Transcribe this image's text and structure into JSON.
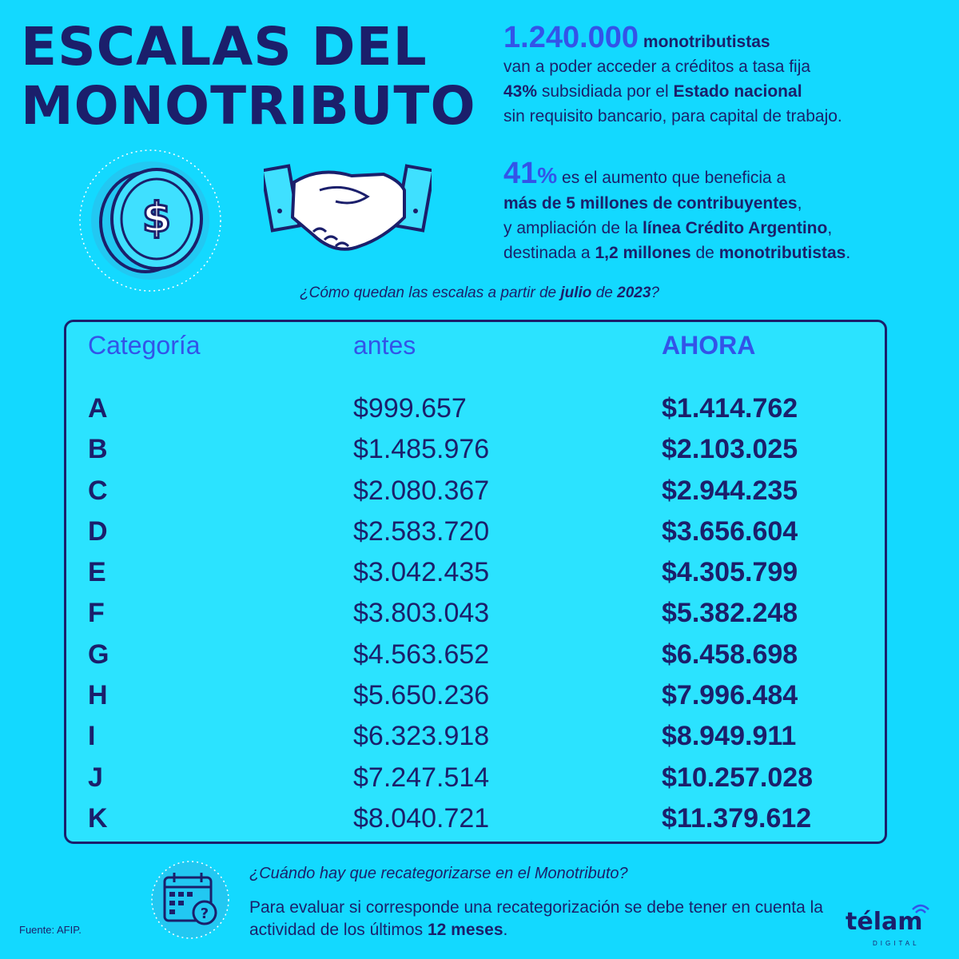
{
  "title": {
    "line1": "ESCALAS DEL",
    "line2": "MONOTRIBUTO"
  },
  "info1": {
    "number": "1.240.000",
    "word": " monotributistas",
    "line2": "van a poder acceder a créditos a tasa fija",
    "pct": "43%",
    "line3_mid": " subsidiada por el ",
    "line3_b": "Estado nacional",
    "line4": "sin requisito bancario, para capital de trabajo."
  },
  "info2": {
    "pct_num": "41",
    "pct_sign": "%",
    "line1": " es el aumento que beneficia a",
    "line2_b": "más de 5 millones de contribuyentes",
    "line2_end": ",",
    "line3_a": "y ampliación de la ",
    "line3_b": "línea Crédito Argentino",
    "line3_end": ",",
    "line4_a": "destinada a ",
    "line4_b": "1,2 millones",
    "line4_c": " de ",
    "line4_d": "monotributistas",
    "line4_end": "."
  },
  "question": {
    "a": "¿Cómo quedan las escalas a partir de ",
    "b": "julio",
    "c": " de ",
    "d": "2023",
    "e": "?"
  },
  "table": {
    "headers": {
      "cat": "Categoría",
      "antes": "antes",
      "ahora": "AHORA"
    },
    "rows": [
      {
        "cat": "A",
        "antes": "$999.657",
        "ahora": "$1.414.762"
      },
      {
        "cat": "B",
        "antes": "$1.485.976",
        "ahora": "$2.103.025"
      },
      {
        "cat": "C",
        "antes": "$2.080.367",
        "ahora": "$2.944.235"
      },
      {
        "cat": "D",
        "antes": "$2.583.720",
        "ahora": "$3.656.604"
      },
      {
        "cat": "E",
        "antes": "$3.042.435",
        "ahora": "$4.305.799"
      },
      {
        "cat": "F",
        "antes": "$3.803.043",
        "ahora": "$5.382.248"
      },
      {
        "cat": "G",
        "antes": "$4.563.652",
        "ahora": "$6.458.698"
      },
      {
        "cat": "H",
        "antes": "$5.650.236",
        "ahora": "$7.996.484"
      },
      {
        "cat": "I",
        "antes": "$6.323.918",
        "ahora": "$8.949.911"
      },
      {
        "cat": "J",
        "antes": "$7.247.514",
        "ahora": "$10.257.028"
      },
      {
        "cat": "K",
        "antes": "$8.040.721",
        "ahora": "$11.379.612"
      }
    ]
  },
  "footer": {
    "question": "¿Cuándo hay que recategorizarse en el Monotributo?",
    "answer_a": "Para evaluar si corresponde una recategorización se debe tener en cuenta la actividad de los últimos ",
    "answer_b": "12 meses",
    "answer_end": ".",
    "source": "Fuente: AFIP.",
    "logo": "télam",
    "logo_sub": "DIGITAL"
  },
  "icons": {
    "coin": "coin-dollar-icon",
    "hands": "handshake-icon",
    "calendar": "calendar-question-icon"
  },
  "colors": {
    "background": "#13d9ff",
    "navy": "#1b1f6b",
    "blue": "#3354e8"
  }
}
